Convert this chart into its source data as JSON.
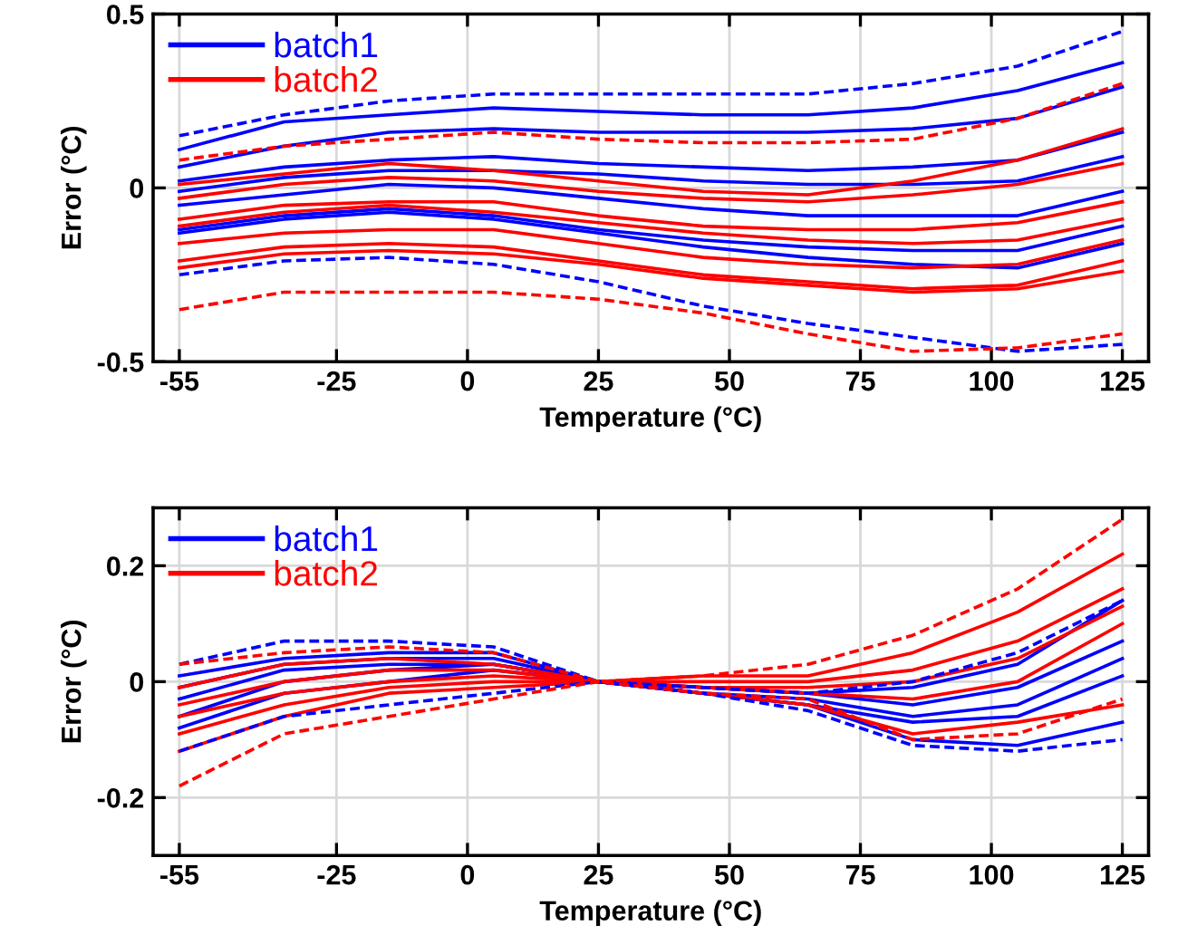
{
  "chart_data": [
    {
      "type": "line",
      "xlabel": "Temperature (°C)",
      "ylabel": "Error (°C)",
      "x": [
        -55,
        -35,
        -15,
        5,
        25,
        45,
        65,
        85,
        105,
        125
      ],
      "xlim": [
        -60,
        130
      ],
      "xticks": [
        -55,
        -25,
        0,
        25,
        50,
        75,
        100,
        125
      ],
      "ylim": [
        -0.5,
        0.5
      ],
      "yticks": [
        -0.5,
        0,
        0.5
      ],
      "grid": true,
      "legend": "top left",
      "line_style": "solid",
      "series": [
        {
          "name": "batch1",
          "color": "#0000ff",
          "values": [
            0.11,
            0.19,
            0.21,
            0.23,
            0.22,
            0.21,
            0.21,
            0.23,
            0.28,
            0.36
          ]
        },
        {
          "color": "#0000ff",
          "values": [
            0.06,
            0.12,
            0.16,
            0.17,
            0.16,
            0.16,
            0.16,
            0.17,
            0.2,
            0.29
          ]
        },
        {
          "color": "#0000ff",
          "values": [
            0.02,
            0.06,
            0.08,
            0.09,
            0.07,
            0.06,
            0.05,
            0.06,
            0.08,
            0.16
          ]
        },
        {
          "color": "#0000ff",
          "values": [
            -0.01,
            0.03,
            0.05,
            0.05,
            0.04,
            0.02,
            0.01,
            0.01,
            0.02,
            0.09
          ]
        },
        {
          "color": "#0000ff",
          "values": [
            -0.05,
            -0.02,
            0.01,
            0,
            -0.03,
            -0.06,
            -0.08,
            -0.08,
            -0.08,
            -0.01
          ]
        },
        {
          "color": "#0000ff",
          "values": [
            -0.12,
            -0.08,
            -0.06,
            -0.08,
            -0.12,
            -0.15,
            -0.17,
            -0.18,
            -0.18,
            -0.11
          ]
        },
        {
          "color": "#0000ff",
          "values": [
            -0.13,
            -0.09,
            -0.07,
            -0.09,
            -0.13,
            -0.17,
            -0.2,
            -0.22,
            -0.23,
            -0.16
          ]
        },
        {
          "color": "#0000ff",
          "line_style": "dashed",
          "values": [
            0.15,
            0.21,
            0.25,
            0.27,
            0.27,
            0.27,
            0.27,
            0.3,
            0.35,
            0.45
          ]
        },
        {
          "color": "#0000ff",
          "line_style": "dashed",
          "values": [
            -0.25,
            -0.21,
            -0.2,
            -0.22,
            -0.27,
            -0.34,
            -0.39,
            -0.43,
            -0.47,
            -0.45
          ]
        },
        {
          "name": "batch2",
          "color": "#ff0000",
          "values": [
            0.01,
            0.04,
            0.07,
            0.05,
            0.02,
            -0.01,
            -0.02,
            0.02,
            0.08,
            0.17
          ]
        },
        {
          "color": "#ff0000",
          "values": [
            -0.03,
            0.01,
            0.03,
            0.02,
            -0.01,
            -0.03,
            -0.04,
            -0.02,
            0.01,
            0.07
          ]
        },
        {
          "color": "#ff0000",
          "values": [
            -0.09,
            -0.05,
            -0.04,
            -0.04,
            -0.08,
            -0.11,
            -0.12,
            -0.12,
            -0.1,
            -0.04
          ]
        },
        {
          "color": "#ff0000",
          "values": [
            -0.11,
            -0.07,
            -0.05,
            -0.07,
            -0.1,
            -0.13,
            -0.15,
            -0.16,
            -0.15,
            -0.09
          ]
        },
        {
          "color": "#ff0000",
          "values": [
            -0.16,
            -0.13,
            -0.12,
            -0.12,
            -0.16,
            -0.2,
            -0.22,
            -0.23,
            -0.22,
            -0.15
          ]
        },
        {
          "color": "#ff0000",
          "values": [
            -0.21,
            -0.17,
            -0.16,
            -0.17,
            -0.21,
            -0.25,
            -0.27,
            -0.29,
            -0.28,
            -0.21
          ]
        },
        {
          "color": "#ff0000",
          "values": [
            -0.23,
            -0.19,
            -0.18,
            -0.19,
            -0.22,
            -0.26,
            -0.28,
            -0.3,
            -0.29,
            -0.24
          ]
        },
        {
          "color": "#ff0000",
          "line_style": "dashed",
          "values": [
            0.08,
            0.12,
            0.14,
            0.16,
            0.14,
            0.13,
            0.13,
            0.14,
            0.2,
            0.3
          ]
        },
        {
          "color": "#ff0000",
          "line_style": "dashed",
          "values": [
            -0.35,
            -0.3,
            -0.3,
            -0.3,
            -0.32,
            -0.36,
            -0.42,
            -0.47,
            -0.46,
            -0.42
          ]
        }
      ]
    },
    {
      "type": "line",
      "xlabel": "Temperature (°C)",
      "ylabel": "Error (°C)",
      "x": [
        -55,
        -35,
        -15,
        5,
        25,
        45,
        65,
        85,
        105,
        125
      ],
      "xlim": [
        -60,
        130
      ],
      "xticks": [
        -55,
        -25,
        0,
        25,
        50,
        75,
        100,
        125
      ],
      "ylim": [
        -0.3,
        0.3
      ],
      "yticks": [
        -0.2,
        0,
        0.2
      ],
      "grid": true,
      "legend": "top left",
      "line_style": "solid",
      "series": [
        {
          "name": "batch1",
          "color": "#0000ff",
          "values": [
            0.01,
            0.04,
            0.05,
            0.05,
            0,
            -0.01,
            -0.02,
            -0.01,
            0.03,
            0.14
          ]
        },
        {
          "color": "#0000ff",
          "values": [
            -0.01,
            0.03,
            0.04,
            0.04,
            0,
            -0.01,
            -0.02,
            -0.04,
            -0.01,
            0.07
          ]
        },
        {
          "color": "#0000ff",
          "values": [
            -0.03,
            0.02,
            0.03,
            0.03,
            0,
            -0.02,
            -0.03,
            -0.06,
            -0.04,
            0.04
          ]
        },
        {
          "color": "#0000ff",
          "values": [
            -0.06,
            0,
            0.02,
            0.03,
            0,
            -0.02,
            -0.04,
            -0.07,
            -0.06,
            0.01
          ]
        },
        {
          "color": "#0000ff",
          "values": [
            -0.08,
            -0.02,
            0,
            0.02,
            0,
            -0.02,
            -0.04,
            -0.1,
            -0.11,
            -0.07
          ]
        },
        {
          "color": "#0000ff",
          "line_style": "dashed",
          "values": [
            0.03,
            0.07,
            0.07,
            0.06,
            0,
            -0.01,
            -0.02,
            0,
            0.05,
            0.14
          ]
        },
        {
          "color": "#0000ff",
          "line_style": "dashed",
          "values": [
            -0.12,
            -0.06,
            -0.04,
            -0.02,
            0,
            -0.02,
            -0.05,
            -0.11,
            -0.12,
            -0.1
          ]
        },
        {
          "name": "batch2",
          "color": "#ff0000",
          "values": [
            -0.01,
            0.03,
            0.04,
            0.03,
            0,
            0.01,
            0.01,
            0.05,
            0.12,
            0.22
          ]
        },
        {
          "color": "#ff0000",
          "values": [
            -0.04,
            0,
            0.02,
            0.02,
            0,
            0,
            0,
            0.02,
            0.07,
            0.16
          ]
        },
        {
          "color": "#ff0000",
          "values": [
            -0.06,
            -0.02,
            0,
            0.01,
            0,
            -0.01,
            -0.01,
            0,
            0.04,
            0.13
          ]
        },
        {
          "color": "#ff0000",
          "values": [
            -0.09,
            -0.04,
            -0.01,
            0,
            0,
            -0.01,
            -0.02,
            -0.03,
            0,
            0.1
          ]
        },
        {
          "color": "#ff0000",
          "values": [
            -0.12,
            -0.06,
            -0.02,
            -0.01,
            0,
            -0.02,
            -0.04,
            -0.09,
            -0.07,
            -0.04
          ]
        },
        {
          "color": "#ff0000",
          "line_style": "dashed",
          "values": [
            0.03,
            0.05,
            0.06,
            0.05,
            0,
            0.01,
            0.03,
            0.08,
            0.16,
            0.28
          ]
        },
        {
          "color": "#ff0000",
          "line_style": "dashed",
          "values": [
            -0.18,
            -0.09,
            -0.06,
            -0.03,
            0,
            -0.02,
            -0.03,
            -0.1,
            -0.09,
            -0.03
          ]
        }
      ]
    }
  ]
}
